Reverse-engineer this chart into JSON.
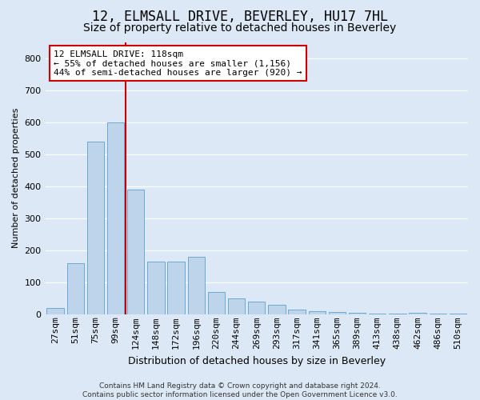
{
  "title": "12, ELMSALL DRIVE, BEVERLEY, HU17 7HL",
  "subtitle": "Size of property relative to detached houses in Beverley",
  "xlabel": "Distribution of detached houses by size in Beverley",
  "ylabel": "Number of detached properties",
  "footer": "Contains HM Land Registry data © Crown copyright and database right 2024.\nContains public sector information licensed under the Open Government Licence v3.0.",
  "categories": [
    "27sqm",
    "51sqm",
    "75sqm",
    "99sqm",
    "124sqm",
    "148sqm",
    "172sqm",
    "196sqm",
    "220sqm",
    "244sqm",
    "269sqm",
    "293sqm",
    "317sqm",
    "341sqm",
    "365sqm",
    "389sqm",
    "413sqm",
    "438sqm",
    "462sqm",
    "486sqm",
    "510sqm"
  ],
  "values": [
    20,
    160,
    540,
    600,
    390,
    165,
    165,
    180,
    70,
    50,
    40,
    30,
    15,
    10,
    8,
    5,
    3,
    2,
    5,
    2,
    2
  ],
  "bar_color": "#bdd4ea",
  "bar_edge_color": "#6aaad4",
  "vline_color": "#cc0000",
  "annotation_text": "12 ELMSALL DRIVE: 118sqm\n← 55% of detached houses are smaller (1,156)\n44% of semi-detached houses are larger (920) →",
  "annotation_box_color": "#ffffff",
  "annotation_box_edge": "#cc0000",
  "bg_color": "#dce8f5",
  "plot_bg_color": "#dce8f5",
  "grid_color": "#ffffff",
  "ylim": [
    0,
    850
  ],
  "yticks": [
    0,
    100,
    200,
    300,
    400,
    500,
    600,
    700,
    800
  ],
  "title_fontsize": 12,
  "subtitle_fontsize": 10,
  "ylabel_fontsize": 8,
  "xlabel_fontsize": 9,
  "tick_fontsize": 8,
  "annot_fontsize": 8
}
